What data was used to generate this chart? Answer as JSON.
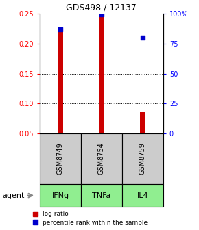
{
  "title": "GDS498 / 12137",
  "categories": [
    "IFNg",
    "TNFa",
    "IL4"
  ],
  "sample_ids": [
    "GSM8749",
    "GSM8754",
    "GSM8759"
  ],
  "log_ratios": [
    0.221,
    0.247,
    0.085
  ],
  "percentile_ranks": [
    87.0,
    99.5,
    80.0
  ],
  "bar_color": "#cc0000",
  "dot_color": "#0000cc",
  "ylim_left": [
    0.05,
    0.25
  ],
  "ylim_right": [
    0,
    100
  ],
  "yticks_left": [
    0.05,
    0.1,
    0.15,
    0.2,
    0.25
  ],
  "yticks_right": [
    0,
    25,
    50,
    75,
    100
  ],
  "ytick_labels_right": [
    "0",
    "25",
    "50",
    "75",
    "100%"
  ],
  "bar_width": 0.12,
  "agent_bg_color": "#90ee90",
  "sample_bg_color": "#cccccc",
  "legend_bar_label": "log ratio",
  "legend_dot_label": "percentile rank within the sample",
  "agent_label": "agent",
  "figure_width": 2.9,
  "figure_height": 3.36
}
